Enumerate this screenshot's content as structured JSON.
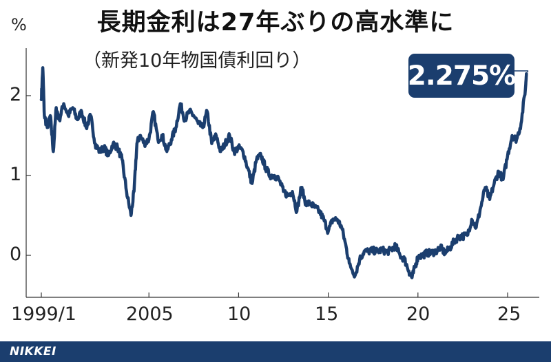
{
  "chart_data": {
    "type": "line",
    "title": "長期金利は27年ぶりの高水準に",
    "subtitle": "（新発10年物国債利回り）",
    "y_unit": "%",
    "ylim": [
      -0.3,
      2.65
    ],
    "xlim": [
      1998.6,
      2026.6
    ],
    "y_ticks": [
      {
        "value": 0,
        "label": "0"
      },
      {
        "value": 1,
        "label": "1"
      },
      {
        "value": 2,
        "label": "2"
      }
    ],
    "x_ticks": [
      {
        "value": 1999.0,
        "label": "1999/1"
      },
      {
        "value": 2005,
        "label": "2005"
      },
      {
        "value": 2010,
        "label": "10"
      },
      {
        "value": 2015,
        "label": "15"
      },
      {
        "value": 2020,
        "label": "20"
      },
      {
        "value": 2025,
        "label": "25"
      }
    ],
    "grid": false,
    "legend": "none",
    "line_color": "#1b3e6e",
    "annotation": {
      "text": "2.275%",
      "value": 2.275
    },
    "series": [
      {
        "points": [
          [
            1999.0,
            1.95
          ],
          [
            1999.08,
            2.35
          ],
          [
            1999.17,
            1.75
          ],
          [
            1999.33,
            1.6
          ],
          [
            1999.5,
            1.75
          ],
          [
            1999.67,
            1.3
          ],
          [
            1999.83,
            1.85
          ],
          [
            2000.0,
            1.7
          ],
          [
            2000.25,
            1.9
          ],
          [
            2000.5,
            1.75
          ],
          [
            2000.75,
            1.85
          ],
          [
            2001.0,
            1.7
          ],
          [
            2001.25,
            1.8
          ],
          [
            2001.5,
            1.6
          ],
          [
            2001.75,
            1.75
          ],
          [
            2002.0,
            1.4
          ],
          [
            2002.25,
            1.3
          ],
          [
            2002.5,
            1.35
          ],
          [
            2002.75,
            1.25
          ],
          [
            2003.0,
            1.4
          ],
          [
            2003.25,
            1.35
          ],
          [
            2003.5,
            1.2
          ],
          [
            2003.75,
            0.8
          ],
          [
            2004.0,
            0.5
          ],
          [
            2004.17,
            0.8
          ],
          [
            2004.33,
            1.4
          ],
          [
            2004.5,
            1.5
          ],
          [
            2004.75,
            1.4
          ],
          [
            2005.0,
            1.45
          ],
          [
            2005.25,
            1.8
          ],
          [
            2005.5,
            1.45
          ],
          [
            2005.75,
            1.5
          ],
          [
            2006.0,
            1.3
          ],
          [
            2006.25,
            1.45
          ],
          [
            2006.5,
            1.6
          ],
          [
            2006.75,
            1.9
          ],
          [
            2007.0,
            1.7
          ],
          [
            2007.25,
            1.8
          ],
          [
            2007.5,
            1.75
          ],
          [
            2007.75,
            1.65
          ],
          [
            2008.0,
            1.6
          ],
          [
            2008.25,
            1.8
          ],
          [
            2008.5,
            1.4
          ],
          [
            2008.75,
            1.5
          ],
          [
            2009.0,
            1.3
          ],
          [
            2009.25,
            1.4
          ],
          [
            2009.5,
            1.5
          ],
          [
            2009.75,
            1.3
          ],
          [
            2010.0,
            1.35
          ],
          [
            2010.25,
            1.3
          ],
          [
            2010.5,
            1.1
          ],
          [
            2010.75,
            0.9
          ],
          [
            2011.0,
            1.2
          ],
          [
            2011.25,
            1.25
          ],
          [
            2011.5,
            1.1
          ],
          [
            2011.75,
            1.0
          ],
          [
            2012.0,
            1.0
          ],
          [
            2012.25,
            0.95
          ],
          [
            2012.5,
            0.8
          ],
          [
            2012.75,
            0.75
          ],
          [
            2013.0,
            0.8
          ],
          [
            2013.25,
            0.55
          ],
          [
            2013.5,
            0.85
          ],
          [
            2013.75,
            0.65
          ],
          [
            2014.0,
            0.65
          ],
          [
            2014.25,
            0.6
          ],
          [
            2014.5,
            0.55
          ],
          [
            2014.75,
            0.45
          ],
          [
            2015.0,
            0.3
          ],
          [
            2015.25,
            0.45
          ],
          [
            2015.5,
            0.45
          ],
          [
            2015.75,
            0.35
          ],
          [
            2016.0,
            0.1
          ],
          [
            2016.17,
            -0.1
          ],
          [
            2016.5,
            -0.25
          ],
          [
            2016.75,
            -0.05
          ],
          [
            2017.0,
            0.05
          ],
          [
            2017.25,
            0.05
          ],
          [
            2017.5,
            0.06
          ],
          [
            2017.75,
            0.05
          ],
          [
            2018.0,
            0.07
          ],
          [
            2018.25,
            0.04
          ],
          [
            2018.5,
            0.07
          ],
          [
            2018.75,
            0.12
          ],
          [
            2019.0,
            0.0
          ],
          [
            2019.25,
            -0.05
          ],
          [
            2019.5,
            -0.2
          ],
          [
            2019.67,
            -0.28
          ],
          [
            2019.83,
            -0.15
          ],
          [
            2020.0,
            -0.02
          ],
          [
            2020.25,
            0.0
          ],
          [
            2020.5,
            0.03
          ],
          [
            2020.75,
            0.03
          ],
          [
            2021.0,
            0.05
          ],
          [
            2021.25,
            0.1
          ],
          [
            2021.5,
            0.03
          ],
          [
            2021.75,
            0.08
          ],
          [
            2022.0,
            0.17
          ],
          [
            2022.25,
            0.23
          ],
          [
            2022.5,
            0.24
          ],
          [
            2022.75,
            0.25
          ],
          [
            2023.0,
            0.45
          ],
          [
            2023.25,
            0.35
          ],
          [
            2023.5,
            0.6
          ],
          [
            2023.75,
            0.85
          ],
          [
            2024.0,
            0.7
          ],
          [
            2024.25,
            0.9
          ],
          [
            2024.5,
            1.05
          ],
          [
            2024.75,
            0.95
          ],
          [
            2025.0,
            1.25
          ],
          [
            2025.25,
            1.5
          ],
          [
            2025.5,
            1.45
          ],
          [
            2025.75,
            1.65
          ],
          [
            2026.0,
            2.1
          ],
          [
            2026.05,
            2.275
          ]
        ]
      }
    ]
  },
  "footer": {
    "logo": "NIKKEI"
  }
}
